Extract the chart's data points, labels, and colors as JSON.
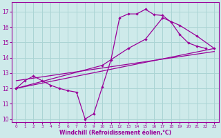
{
  "xlabel": "Windchill (Refroidissement éolien,°C)",
  "bg_color": "#ceeaea",
  "grid_color": "#aad4d4",
  "line_color": "#990099",
  "xlim": [
    -0.5,
    23.5
  ],
  "ylim": [
    9.8,
    17.6
  ],
  "yticks": [
    10,
    11,
    12,
    13,
    14,
    15,
    16,
    17
  ],
  "xticks": [
    0,
    1,
    2,
    3,
    4,
    5,
    6,
    7,
    8,
    9,
    10,
    11,
    12,
    13,
    14,
    15,
    16,
    17,
    18,
    19,
    20,
    21,
    22,
    23
  ],
  "lines": [
    {
      "x": [
        0,
        1,
        2,
        3,
        4,
        5,
        6,
        7,
        8,
        9,
        10,
        11,
        12,
        13,
        14,
        15,
        16,
        17,
        18,
        19,
        20,
        21,
        22
      ],
      "y": [
        12.0,
        12.5,
        12.8,
        12.5,
        12.2,
        12.0,
        11.85,
        11.75,
        10.0,
        10.35,
        12.1,
        13.85,
        16.6,
        16.85,
        16.85,
        17.15,
        16.8,
        16.75,
        16.3,
        15.5,
        14.95,
        14.75,
        14.6
      ]
    },
    {
      "x": [
        0,
        10,
        13,
        15,
        17,
        19,
        21,
        23
      ],
      "y": [
        12.0,
        13.5,
        14.6,
        15.2,
        16.6,
        16.1,
        15.4,
        14.6
      ]
    },
    {
      "x": [
        0,
        23
      ],
      "y": [
        12.5,
        14.4
      ]
    },
    {
      "x": [
        0,
        23
      ],
      "y": [
        12.0,
        14.6
      ]
    }
  ]
}
